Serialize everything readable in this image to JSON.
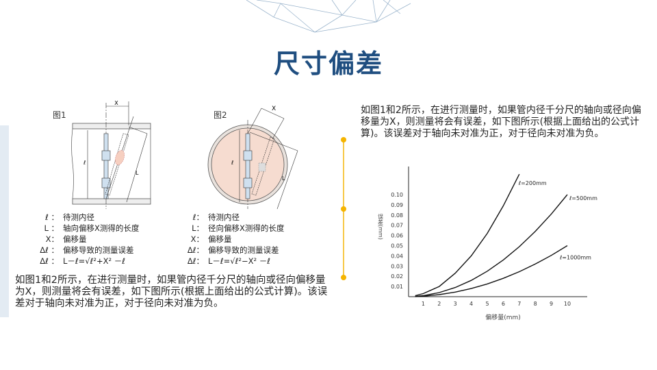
{
  "title": "尺寸偏差",
  "figures": [
    {
      "label": "图1",
      "dimension_labels": [
        "X",
        "ℓ",
        "L"
      ],
      "legend": [
        {
          "key": "ℓ ：",
          "text": "待测内径"
        },
        {
          "key": "L ：",
          "text": "轴向偏移X测得的长度"
        },
        {
          "key": "X：",
          "text": "偏移量"
        },
        {
          "key": "Δℓ ：",
          "text": "偏移导致的测量误差"
        },
        {
          "key": "Δℓ ：",
          "text": "L－ℓ=√ℓ²+X² －ℓ"
        }
      ]
    },
    {
      "label": "图2",
      "dimension_labels": [
        "X",
        "ℓ",
        "L"
      ],
      "legend": [
        {
          "key": "ℓ：",
          "text": "待测内径"
        },
        {
          "key": "L：",
          "text": "径向偏移X测得的长度"
        },
        {
          "key": "X：",
          "text": "偏移量"
        },
        {
          "key": "Δℓ：",
          "text": "偏移导致的测量误差"
        },
        {
          "key": "Δℓ：",
          "text": "L－ℓ=√ℓ²−X² －ℓ"
        }
      ]
    }
  ],
  "paragraph": "如图1和2所示，在进行测量时，如果管内径千分尺的轴向或径向偏移量为X，则测量将会有误差，如下图所示(根据上面给出的公式计算)。该误差对于轴向未对准为正，对于径向未对准为负。",
  "colors": {
    "title": "#1f4e80",
    "accent": "#f5b400",
    "sidebar": "#e3ebf3",
    "pipe_fill": "#f6dcd0"
  },
  "chart_data": {
    "type": "line",
    "xlabel": "偏移量(mm)",
    "ylabel": "误差(mm)",
    "xticks": [
      "1",
      "2",
      "3",
      "4",
      "5",
      "6",
      "7",
      "8",
      "9",
      "10"
    ],
    "yticks": [
      "0.01",
      "0.02",
      "0.03",
      "0.04",
      "0.05",
      "0.06",
      "0.07",
      "0.08",
      "0.09",
      "0.10"
    ],
    "xlim": [
      0,
      11
    ],
    "ylim": [
      0,
      0.125
    ],
    "grid": false,
    "series": [
      {
        "name": "ℓ=200mm",
        "x": [
          0.5,
          1,
          2,
          3,
          4,
          5,
          6,
          7
        ],
        "y": [
          0.001,
          0.003,
          0.01,
          0.023,
          0.04,
          0.062,
          0.089,
          0.12
        ]
      },
      {
        "name": "ℓ=500mm",
        "x": [
          0.5,
          1,
          2,
          3,
          4,
          5,
          6,
          7,
          8,
          9,
          10
        ],
        "y": [
          0.0003,
          0.001,
          0.004,
          0.009,
          0.016,
          0.025,
          0.036,
          0.049,
          0.064,
          0.081,
          0.1
        ]
      },
      {
        "name": "ℓ=1000mm",
        "x": [
          0.5,
          1,
          2,
          3,
          4,
          5,
          6,
          7,
          8,
          9,
          10
        ],
        "y": [
          0.0001,
          0.0005,
          0.002,
          0.0045,
          0.008,
          0.0125,
          0.018,
          0.0245,
          0.032,
          0.0405,
          0.05
        ]
      }
    ]
  }
}
